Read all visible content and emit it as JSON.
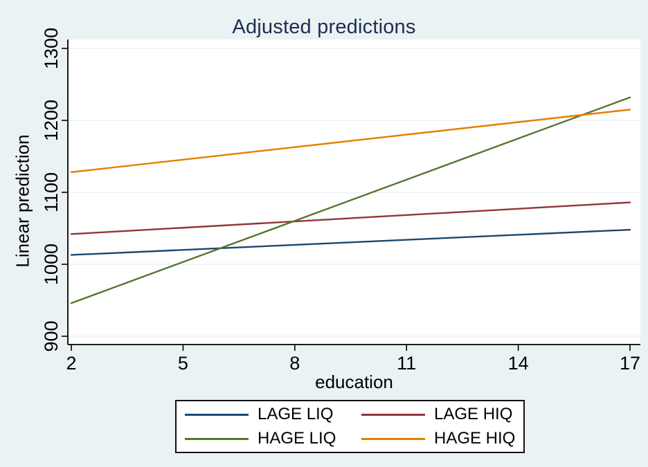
{
  "title": "Adjusted predictions",
  "colors": {
    "page_background": "#eaf2f3",
    "plot_background": "#ffffff",
    "gridline": "#ebf0f0",
    "axis_line": "#000000",
    "tick_label": "#000000",
    "title_text": "#1e2d53",
    "legend_border": "#0f0f0f",
    "legend_background": "#ffffff"
  },
  "chart_data": {
    "type": "line",
    "title": "Adjusted predictions",
    "xlabel": "education",
    "ylabel": "Linear prediction",
    "x": [
      2,
      17
    ],
    "xticks": [
      2,
      5,
      8,
      11,
      14,
      17
    ],
    "yticks": [
      900,
      1000,
      1100,
      1200,
      1300
    ],
    "xlim": [
      1.9,
      17.3
    ],
    "ylim": [
      888,
      1312
    ],
    "grid": "horizontal gridlines at each y tick",
    "legend_position": "bottom-center, boxed, 2 columns x 2 rows",
    "series": [
      {
        "name": "LAGE LIQ",
        "color": "#1a476f",
        "values": [
          1013,
          1048
        ]
      },
      {
        "name": "LAGE HIQ",
        "color": "#90353b",
        "values": [
          1042,
          1086
        ]
      },
      {
        "name": "HAGE LIQ",
        "color": "#55752f",
        "values": [
          946,
          1232
        ]
      },
      {
        "name": "HAGE HIQ",
        "color": "#e37e00",
        "values": [
          1128,
          1215
        ]
      }
    ]
  }
}
